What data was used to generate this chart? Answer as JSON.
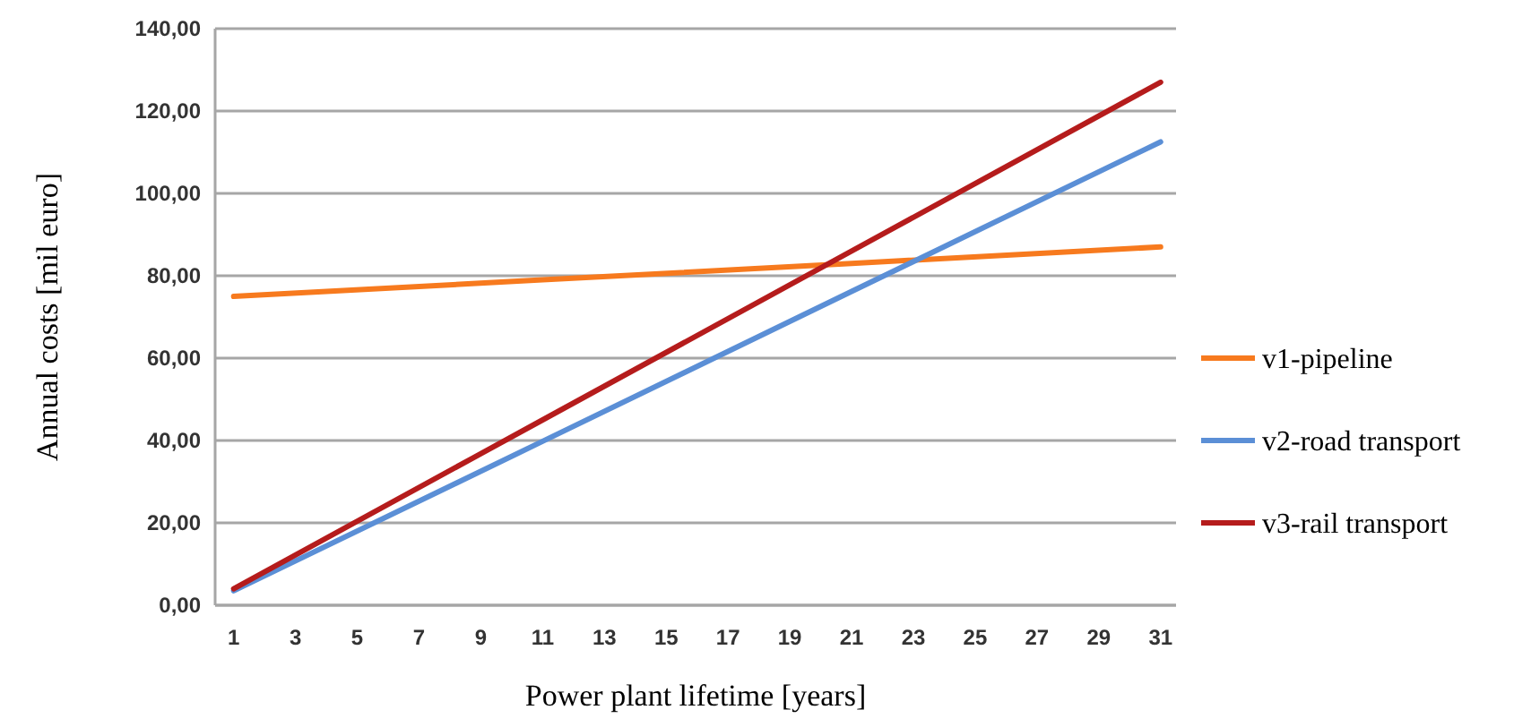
{
  "chart_data": {
    "type": "line",
    "xlabel": "Power plant lifetime  [years]",
    "ylabel": "Annual costs [mil euro]",
    "x": [
      1,
      11,
      21,
      31
    ],
    "xlim": [
      0.4,
      31.5
    ],
    "xticks": [
      1,
      3,
      5,
      7,
      9,
      11,
      13,
      15,
      17,
      19,
      21,
      23,
      25,
      27,
      29,
      31
    ],
    "ylim": [
      0,
      140
    ],
    "yticks": [
      {
        "value": 0,
        "label": "0,00"
      },
      {
        "value": 20,
        "label": "20,00"
      },
      {
        "value": 40,
        "label": "40,00"
      },
      {
        "value": 60,
        "label": "60,00"
      },
      {
        "value": 80,
        "label": "80,00"
      },
      {
        "value": 100,
        "label": "100,00"
      },
      {
        "value": 120,
        "label": "120,00"
      },
      {
        "value": 140,
        "label": "140,00"
      }
    ],
    "grid": "y",
    "legend": "right",
    "marker": "none",
    "line_style": "solid",
    "series": [
      {
        "name": "v1-pipeline",
        "color": "#f77a1e",
        "values": [
          75,
          79,
          83,
          87
        ]
      },
      {
        "name": "v2-road transport",
        "color": "#5b8fd6",
        "values": [
          3.5,
          39.8,
          76.2,
          112.5
        ]
      },
      {
        "name": "v3-rail transport",
        "color": "#b51c1c",
        "values": [
          4,
          45,
          86,
          127
        ]
      }
    ]
  }
}
